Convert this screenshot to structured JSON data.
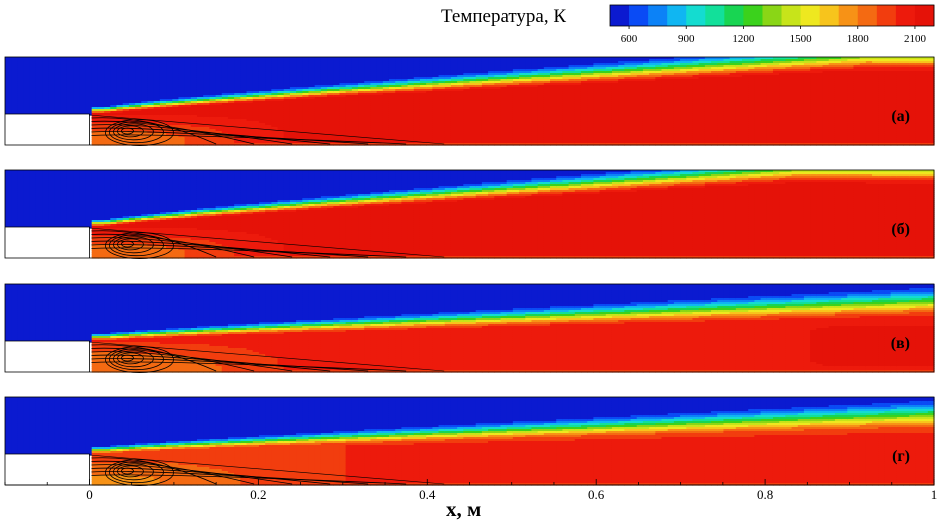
{
  "chart_data": {
    "type": "heatmap",
    "title": "",
    "xlabel": "x, м",
    "ylabel": "",
    "xlim": [
      -0.1,
      1.0
    ],
    "x_ticks": [
      {
        "value": 0,
        "label": "0"
      },
      {
        "value": 0.2,
        "label": "0.2"
      },
      {
        "value": 0.4,
        "label": "0.4"
      },
      {
        "value": 0.6,
        "label": "0.6"
      },
      {
        "value": 0.8,
        "label": "0.8"
      },
      {
        "value": 1.0,
        "label": "1"
      }
    ],
    "colorbar": {
      "title": "Температура, К",
      "min": 500,
      "max": 2200,
      "step": 100,
      "tick_values": [
        600,
        900,
        1200,
        1500,
        1800,
        2100
      ],
      "tick_labels": [
        "600",
        "900",
        "1200",
        "1500",
        "1800",
        "2100"
      ],
      "colors": [
        "#0b1ad0",
        "#0a4bf5",
        "#0c82f7",
        "#10b6f2",
        "#14dcd0",
        "#12e09a",
        "#18d552",
        "#3bd21c",
        "#8ad616",
        "#c7e41a",
        "#eee81f",
        "#f7c41c",
        "#f79216",
        "#f46a12",
        "#f23d0e",
        "#ed1a0c",
        "#e51208"
      ],
      "placement": "top-right"
    },
    "panels": [
      {
        "label": "(а)",
        "flame_origin_x": 0.02,
        "hot_core_temperature": 2150,
        "hot_core_start_x": 0.22,
        "hot_region_full_width_x": 0.92,
        "upper_temperature": 550
      },
      {
        "label": "(б)",
        "flame_origin_x": 0.02,
        "hot_core_temperature": 2150,
        "hot_core_start_x": 0.22,
        "hot_region_full_width_x": 0.84,
        "upper_temperature": 550
      },
      {
        "label": "(в)",
        "flame_origin_x": 0.02,
        "hot_core_temperature": 2050,
        "hot_core_start_x": 0.8,
        "hot_region_full_width_x": null,
        "upper_temperature": 550
      },
      {
        "label": "(г)",
        "flame_origin_x": 0.02,
        "hot_core_temperature": 2000,
        "hot_core_start_x": null,
        "hot_region_full_width_x": null,
        "upper_temperature": 550
      }
    ],
    "grid": false,
    "streamlines": "recirculation vortex behind the step, x ≈ 0 – 0.25 м"
  }
}
